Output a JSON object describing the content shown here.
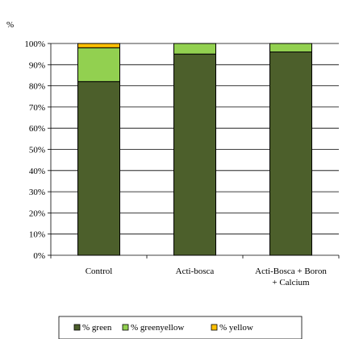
{
  "chart_data": {
    "type": "bar",
    "stacked": true,
    "percent_axis": true,
    "unit_label": "%",
    "categories": [
      "Control",
      "Acti-bosca",
      "Acti-Bosca + Boron + Calcium"
    ],
    "category_label_lines": [
      [
        "Control"
      ],
      [
        "Acti-bosca"
      ],
      [
        "Acti-Bosca + Boron",
        "+ Calcium"
      ]
    ],
    "series": [
      {
        "name": "% green",
        "color": "#4c5f2b",
        "values": [
          82,
          95,
          96
        ]
      },
      {
        "name": "% greenyellow",
        "color": "#92d050",
        "values": [
          16,
          5,
          4
        ]
      },
      {
        "name": "% yellow",
        "color": "#ffc000",
        "values": [
          2,
          0,
          0
        ]
      }
    ],
    "yticks": [
      "0%",
      "10%",
      "20%",
      "30%",
      "40%",
      "50%",
      "60%",
      "70%",
      "80%",
      "90%",
      "100%"
    ],
    "ylim": [
      0,
      100
    ],
    "grid": true,
    "legend_position": "bottom"
  }
}
